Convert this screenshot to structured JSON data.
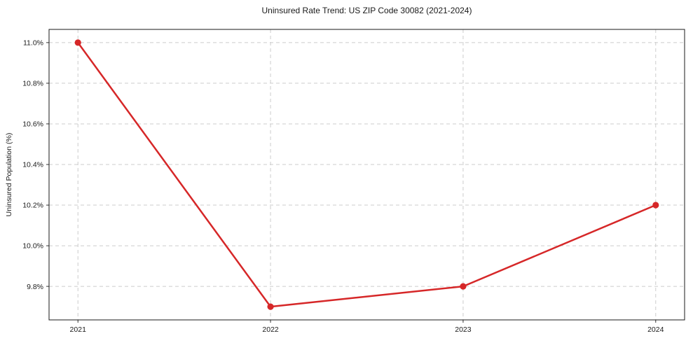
{
  "chart_data": {
    "type": "line",
    "title": "Uninsured Rate Trend: US ZIP Code 30082 (2021-2024)",
    "xlabel": "",
    "ylabel": "Uninsured Population (%)",
    "x": [
      2021,
      2022,
      2023,
      2024
    ],
    "series": [
      {
        "name": "Uninsured rate",
        "values": [
          11.0,
          9.7,
          9.8,
          10.2
        ]
      }
    ],
    "xticks": [
      2021,
      2022,
      2023,
      2024
    ],
    "xtick_labels": [
      "2021",
      "2022",
      "2023",
      "2024"
    ],
    "yticks": [
      9.8,
      10.0,
      10.2,
      10.4,
      10.6,
      10.8,
      11.0
    ],
    "ytick_labels": [
      "9.8%",
      "10.0%",
      "10.2%",
      "10.4%",
      "10.6%",
      "10.8%",
      "11.0%"
    ],
    "xlim": [
      2020.85,
      2024.15
    ],
    "ylim": [
      9.635,
      11.065
    ],
    "grid": true,
    "legend": null,
    "colors": {
      "line": "#d62728",
      "marker": "#d62728",
      "grid": "#cccccc",
      "spine": "#1a1a1a",
      "tick": "#333333"
    }
  }
}
